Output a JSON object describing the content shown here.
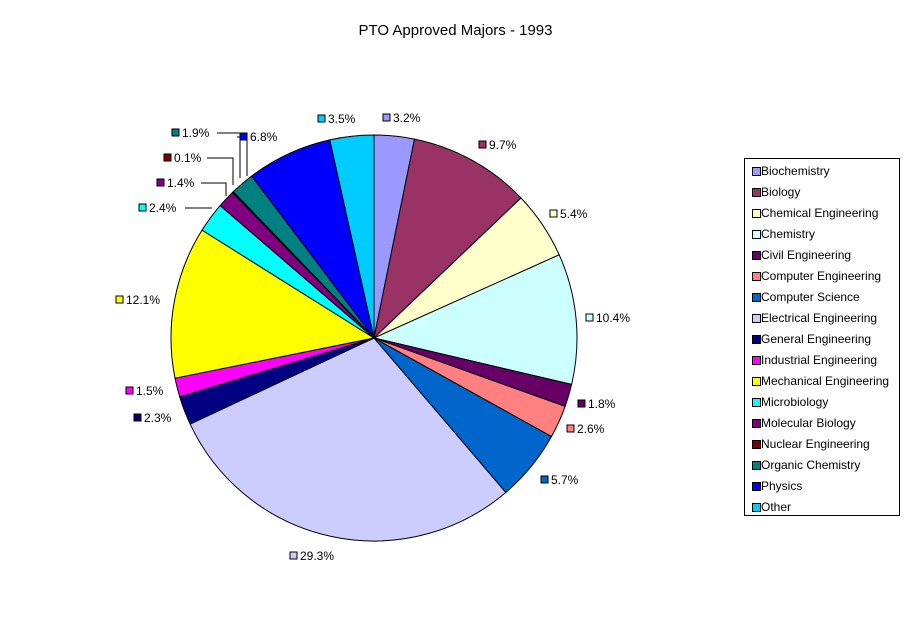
{
  "chart_data": {
    "type": "pie",
    "title": "PTO Approved Majors - 1993",
    "slices": [
      {
        "label": "Biochemistry",
        "value": 3.2,
        "value_label": "3.2%",
        "color": "#9999ff"
      },
      {
        "label": "Biology",
        "value": 9.7,
        "value_label": "9.7%",
        "color": "#993366"
      },
      {
        "label": "Chemical Engineering",
        "value": 5.4,
        "value_label": "5.4%",
        "color": "#ffffcc"
      },
      {
        "label": "Chemistry",
        "value": 10.4,
        "value_label": "10.4%",
        "color": "#ccffff"
      },
      {
        "label": "Civil Engineering",
        "value": 1.8,
        "value_label": "1.8%",
        "color": "#660066"
      },
      {
        "label": "Computer Engineering",
        "value": 2.6,
        "value_label": "2.6%",
        "color": "#ff8080"
      },
      {
        "label": "Computer Science",
        "value": 5.7,
        "value_label": "5.7%",
        "color": "#0066cc"
      },
      {
        "label": "Electrical Engineering",
        "value": 29.3,
        "value_label": "29.3%",
        "color": "#ccccff"
      },
      {
        "label": "General Engineering",
        "value": 2.3,
        "value_label": "2.3%",
        "color": "#000080"
      },
      {
        "label": "Industrial Engineering",
        "value": 1.5,
        "value_label": "1.5%",
        "color": "#ff00ff"
      },
      {
        "label": "Mechanical Engineering",
        "value": 12.1,
        "value_label": "12.1%",
        "color": "#ffff00"
      },
      {
        "label": "Microbiology",
        "value": 2.4,
        "value_label": "2.4%",
        "color": "#00ffff"
      },
      {
        "label": "Molecular Biology",
        "value": 1.4,
        "value_label": "1.4%",
        "color": "#800080"
      },
      {
        "label": "Nuclear Engineering",
        "value": 0.1,
        "value_label": "0.1%",
        "color": "#800000"
      },
      {
        "label": "Organic Chemistry",
        "value": 1.9,
        "value_label": "1.9%",
        "color": "#008080"
      },
      {
        "label": "Physics",
        "value": 6.8,
        "value_label": "6.8%",
        "color": "#0000ff"
      },
      {
        "label": "Other",
        "value": 3.5,
        "value_label": "3.5%",
        "color": "#00ccff"
      }
    ],
    "legend_position": "right"
  }
}
